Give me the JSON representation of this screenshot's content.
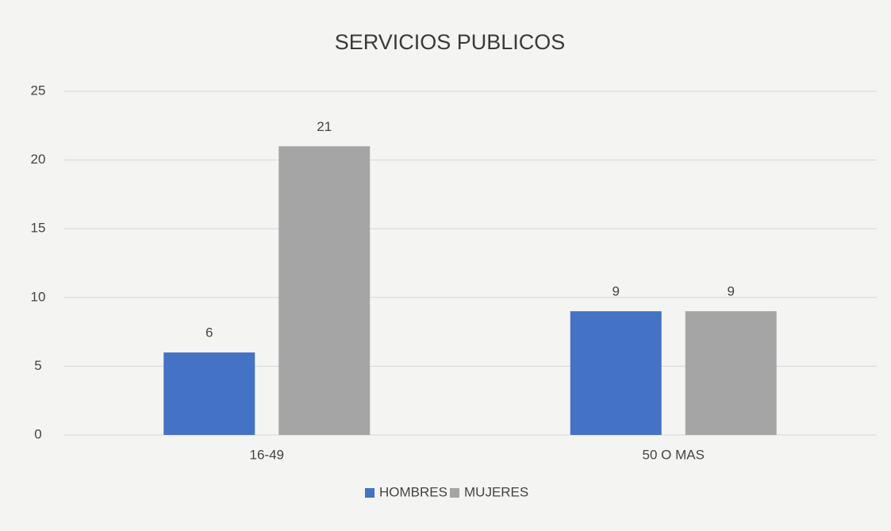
{
  "chart_data": {
    "type": "bar",
    "title": "SERVICIOS PUBLICOS",
    "categories": [
      "16-49",
      "50 O MAS"
    ],
    "series": [
      {
        "name": "HOMBRES",
        "color": "#4472c4",
        "values": [
          6,
          9
        ]
      },
      {
        "name": "MUJERES",
        "color": "#a5a5a5",
        "values": [
          21,
          9
        ]
      }
    ],
    "ylim": [
      0,
      25
    ],
    "yticks": [
      0,
      5,
      10,
      15,
      20,
      25
    ],
    "grid": true,
    "legend": "bottom"
  }
}
